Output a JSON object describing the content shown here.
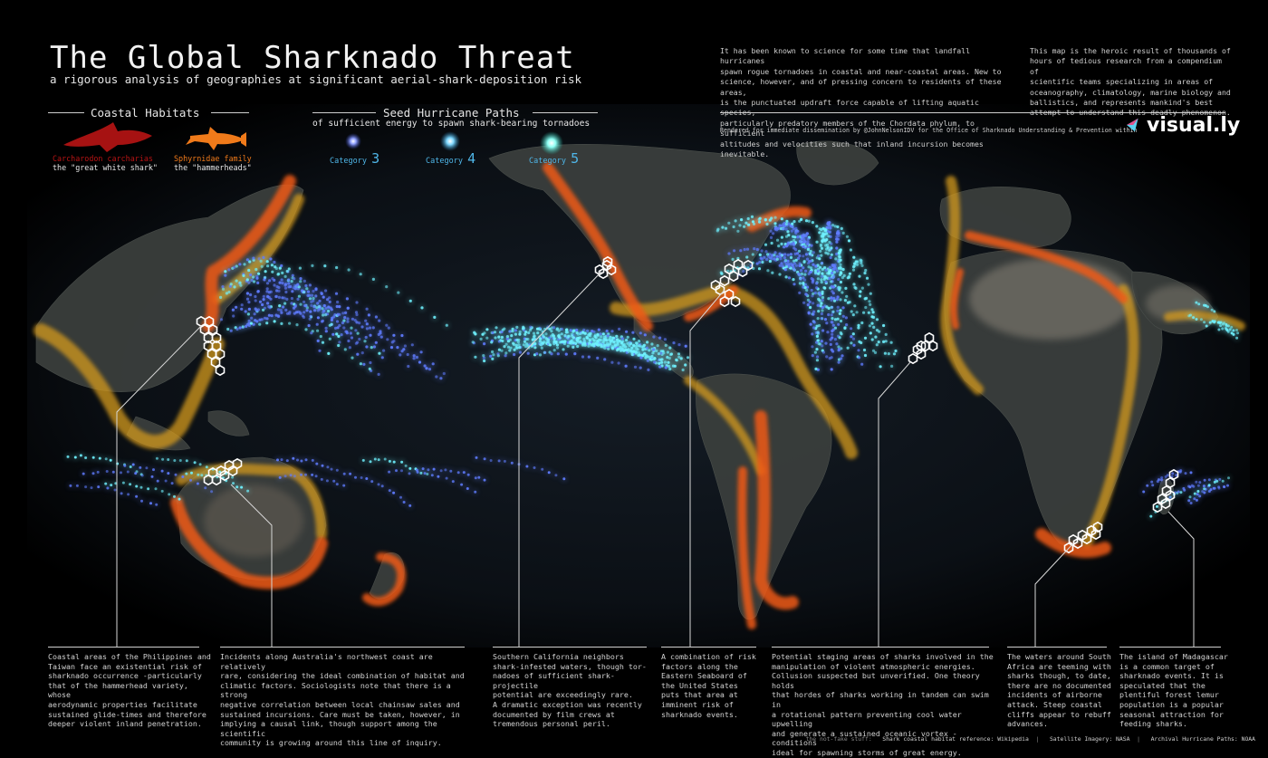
{
  "header": {
    "title": "The Global Sharknado Threat",
    "subtitle": "a rigorous analysis of geographies at significant aerial-shark-deposition risk",
    "intro_left": "It has been known to science for some time that landfall hurricanes\nspawn rogue tornadoes in coastal and near-coastal areas.  New to\nscience, however, and of pressing concern to residents of these areas,\nis the punctuated updraft force capable of lifting aquatic species,\nparticularly predatory members of the Chordata phylum, to sufficient\naltitudes and velocities such that inland incursion becomes inevitable.",
    "intro_right": "This map is the heroic result of thousands of\nhours of tedious research from a compendium of\nscientific teams specializing in areas of\noceanography, climatology, marine biology and\nballistics, and represents mankind's best\nattempt to understand this deadly phenomenon.",
    "credit": "Rendered for immediate dissemination by @JohnNelsonIDV for the Office of Sharknado Understanding & Prevention within",
    "logo": "visual.ly"
  },
  "legend": {
    "habitats_title": "Coastal Habitats",
    "white_latin": "Carcharodon carcharias",
    "white_common": "the \"great white shark\"",
    "white_color": "#b81414",
    "hammer_latin": "Sphyrnidae family",
    "hammer_common": "the \"hammerheads\"",
    "hammer_color": "#f07a1a",
    "hurricane_title": "Seed Hurricane Paths",
    "hurricane_subtitle": "of sufficient energy to spawn shark-bearing tornadoes",
    "category_word": "Category",
    "categories": [
      "3",
      "4",
      "5"
    ]
  },
  "notes": [
    {
      "text": "Coastal areas of the Philippines and\nTaiwan face an existential risk of\nsharknado occurrence -particularly\nthat of the hammerhead variety, whose\naerodynamic properties facilitate\nsustained glide-times and therefore\ndeeper violent inland penetration."
    },
    {
      "text": "Incidents along Australia's northwest coast are relatively\nrare, considering the ideal combination of habitat and\nclimatic factors.  Sociologists note that there is a strong\nnegative correlation between local chainsaw sales and\nsustained incursions. Care must be taken, however, in\nimplying a causal link, though support among the scientific\ncommunity is growing around this line of inquiry."
    },
    {
      "text": "Southern California neighbors\nshark-infested waters, though tor-\nnadoes of sufficient shark-projectile\npotential are exceedingly rare.\nA dramatic exception was recently\ndocumented by film crews at\ntremendous personal peril."
    },
    {
      "text": "A combination of risk\nfactors along the\nEastern Seaboard of\nthe United States\nputs that area at\nimminent risk of\nsharknado events."
    },
    {
      "text": "Potential staging areas of sharks involved in the\nmanipulation of violent atmospheric energies.\nCollusion suspected but unverified. One theory holds\nthat hordes of sharks working in tandem can swim in\na rotational pattern preventing cool water upwelling\nand generate a sustained oceanic vortex -conditions\nideal for spawning storms of great energy."
    },
    {
      "text": "The waters around  South\nAfrica are teeming with\nsharks though, to date,\nthere are no documented\nincidents of airborne\nattack. Steep coastal\ncliffs appear to rebuff\nadvances."
    },
    {
      "text": "The island of Madagascar\nis a common target of\nsharknado events.  It is\nspeculated that the\nplentiful forest lemur\npopulation is a popular\nseasonal attraction for\nfeeding sharks."
    }
  ],
  "footer": {
    "lead": "the not-fake stuff:",
    "s1": "Shark coastal habitat reference: Wikipedia",
    "s2": "Satellite Imagery: NASA",
    "s3": "Archival Hurricane Paths: NOAA",
    "sep": "|"
  },
  "colors": {
    "track_blue": "#5f7cff",
    "track_cyan": "#6ff2ff",
    "hammer_zone": "#d49a1e",
    "white_zone": "#f05a12"
  }
}
